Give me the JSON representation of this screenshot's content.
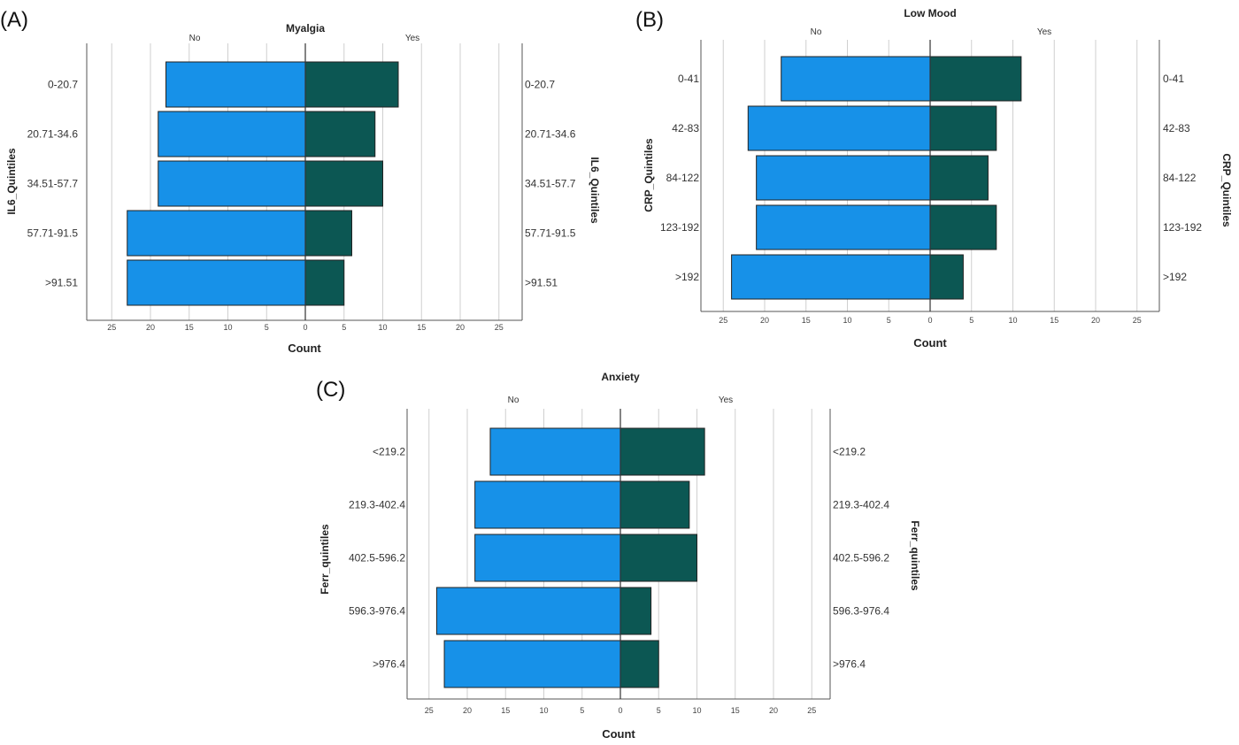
{
  "colors": {
    "no": "#1791e8",
    "yes": "#0c5753",
    "grid": "#cfcfcf",
    "axis": "#555555",
    "bar_stroke": "#222222"
  },
  "chart_data": [
    {
      "panel": "(A)",
      "type": "bar",
      "orientation": "horizontal-population-pyramid",
      "title": "Myalgia",
      "left_group": "No",
      "right_group": "Yes",
      "ylabel_left": "IL6_Quintiles",
      "ylabel_right": "IL6_Quintiles",
      "xlabel": "Count",
      "categories": [
        "0-20.7",
        "20.71-34.6",
        "34.51-57.7",
        "57.71-91.5",
        ">91.51"
      ],
      "series": [
        {
          "name": "No",
          "values": [
            18,
            19,
            19,
            23,
            23
          ]
        },
        {
          "name": "Yes",
          "values": [
            12,
            9,
            10,
            6,
            5
          ]
        }
      ],
      "ticks_left": [
        "25",
        "20",
        "15",
        "10",
        "5"
      ],
      "tick_zero": "0",
      "ticks_right": [
        "5",
        "10",
        "15",
        "20",
        "25"
      ],
      "xlim": [
        -25,
        25
      ],
      "grid": true
    },
    {
      "panel": "(B)",
      "type": "bar",
      "orientation": "horizontal-population-pyramid",
      "title": "Low Mood",
      "left_group": "No",
      "right_group": "Yes",
      "ylabel_left": "CRP_Quintiles",
      "ylabel_right": "CRP_Quintiles",
      "xlabel": "Count",
      "categories": [
        "0-41",
        "42-83",
        "84-122",
        "123-192",
        ">192"
      ],
      "series": [
        {
          "name": "No",
          "values": [
            18,
            22,
            21,
            21,
            24
          ]
        },
        {
          "name": "Yes",
          "values": [
            11,
            8,
            7,
            8,
            4
          ]
        }
      ],
      "ticks_left": [
        "25",
        "20",
        "15",
        "10",
        "5"
      ],
      "tick_zero": "0",
      "ticks_right": [
        "5",
        "10",
        "15",
        "20",
        "25"
      ],
      "xlim": [
        -25,
        25
      ],
      "grid": true
    },
    {
      "panel": "(C)",
      "type": "bar",
      "orientation": "horizontal-population-pyramid",
      "title": "Anxiety",
      "left_group": "No",
      "right_group": "Yes",
      "ylabel_left": "Ferr_quintiles",
      "ylabel_right": "Ferr_quintiles",
      "xlabel": "Count",
      "categories": [
        "<219.2",
        "219.3-402.4",
        "402.5-596.2",
        "596.3-976.4",
        ">976.4"
      ],
      "series": [
        {
          "name": "No",
          "values": [
            17,
            19,
            19,
            24,
            23
          ]
        },
        {
          "name": "Yes",
          "values": [
            11,
            9,
            10,
            4,
            5
          ]
        }
      ],
      "ticks_left": [
        "25",
        "20",
        "15",
        "10",
        "5"
      ],
      "tick_zero": "0",
      "ticks_right": [
        "5",
        "10",
        "15",
        "20",
        "25"
      ],
      "xlim": [
        -25,
        25
      ],
      "grid": true
    }
  ]
}
